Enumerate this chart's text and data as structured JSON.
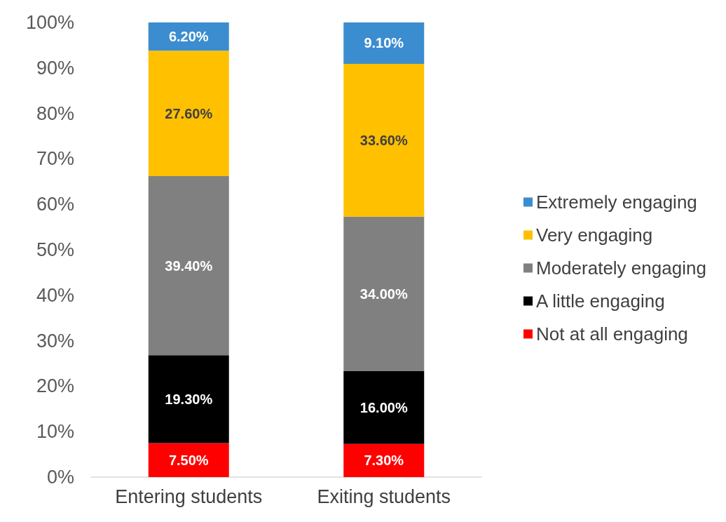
{
  "chart_data": {
    "type": "bar",
    "stacked": true,
    "categories": [
      "Entering students",
      "Exiting students"
    ],
    "series": [
      {
        "name": "Not at all engaging",
        "color": "#ff0000",
        "values": [
          7.5,
          7.3
        ],
        "value_labels": [
          "7.50%",
          "7.30%"
        ]
      },
      {
        "name": "A little engaging",
        "color": "#000000",
        "values": [
          19.3,
          16.0
        ],
        "value_labels": [
          "19.30%",
          "16.00%"
        ]
      },
      {
        "name": "Moderately engaging",
        "color": "#808080",
        "values": [
          39.4,
          34.0
        ],
        "value_labels": [
          "39.40%",
          "34.00%"
        ]
      },
      {
        "name": "Very engaging",
        "color": "#ffc000",
        "values": [
          27.6,
          33.6
        ],
        "value_labels": [
          "27.60%",
          "33.60%"
        ]
      },
      {
        "name": "Extremely engaging",
        "color": "#3b8dcf",
        "values": [
          6.2,
          9.1
        ],
        "value_labels": [
          "6.20%",
          "9.10%"
        ]
      }
    ],
    "ylim": [
      0,
      100
    ],
    "yticks": [
      {
        "value": 0,
        "label": "0%"
      },
      {
        "value": 10,
        "label": "10%"
      },
      {
        "value": 20,
        "label": "20%"
      },
      {
        "value": 30,
        "label": "30%"
      },
      {
        "value": 40,
        "label": "40%"
      },
      {
        "value": 50,
        "label": "50%"
      },
      {
        "value": 60,
        "label": "60%"
      },
      {
        "value": 70,
        "label": "70%"
      },
      {
        "value": 80,
        "label": "80%"
      },
      {
        "value": 90,
        "label": "90%"
      },
      {
        "value": 100,
        "label": "100%"
      }
    ],
    "grid": false,
    "legend": "right"
  }
}
